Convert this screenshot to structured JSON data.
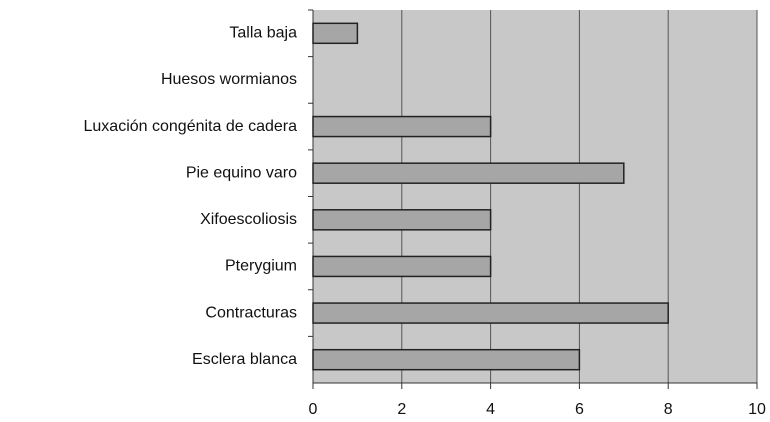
{
  "chart_data": {
    "type": "bar",
    "orientation": "horizontal",
    "categories": [
      "Talla baja",
      "Huesos wormianos",
      "Luxación congénita de cadera",
      "Pie equino varo",
      "Xifoescoliosis",
      "Pterygium",
      "Contracturas",
      "Esclera blanca"
    ],
    "values": [
      1,
      0,
      4,
      7,
      4,
      4,
      8,
      6
    ],
    "color": "#a6a6a6",
    "xlim": [
      0,
      10
    ],
    "xticks": [
      0,
      2,
      4,
      6,
      8,
      10
    ],
    "grid": true
  }
}
